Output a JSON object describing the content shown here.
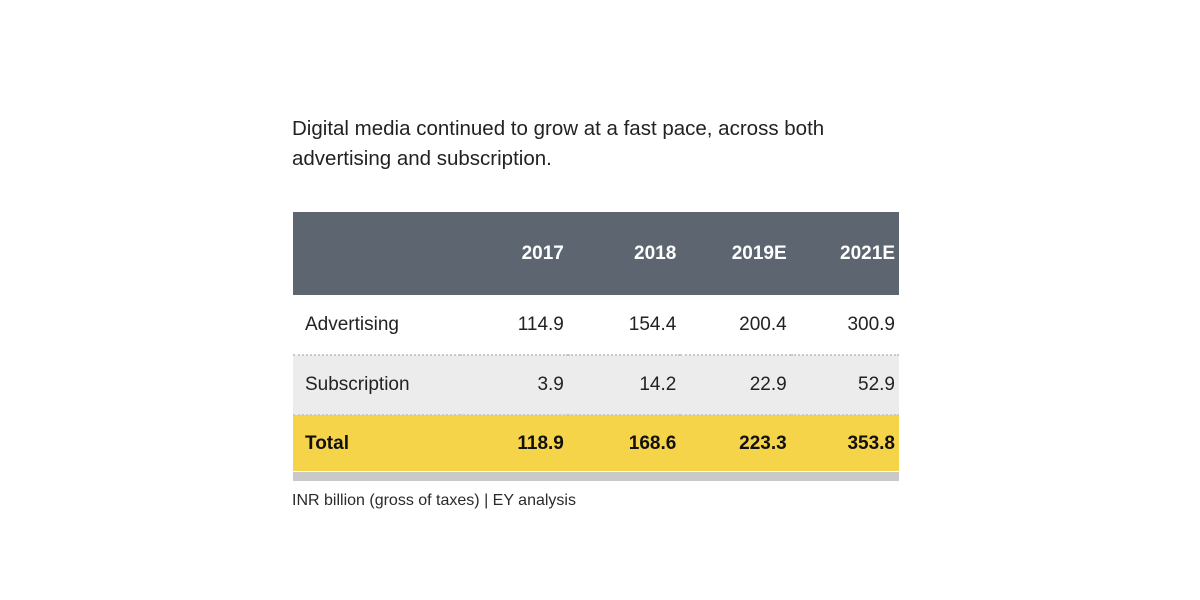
{
  "chart_data": {
    "type": "table",
    "title": "Digital media continued to grow at a fast pace, across both advertising and subscription.",
    "columns": [
      "",
      "2017",
      "2018",
      "2019E",
      "2021E"
    ],
    "rows": [
      {
        "label": "Advertising",
        "values": [
          "114.9",
          "154.4",
          "200.4",
          "300.9"
        ]
      },
      {
        "label": "Subscription",
        "values": [
          "3.9",
          "14.2",
          "22.9",
          "52.9"
        ]
      },
      {
        "label": "Total",
        "values": [
          "118.9",
          "168.6",
          "223.3",
          "353.8"
        ]
      }
    ],
    "note": "INR billion (gross of taxes) | EY analysis"
  },
  "colors": {
    "header_bg": "#5c6570",
    "alt_row_bg": "#ececec",
    "total_bg": "#f6d44a"
  }
}
